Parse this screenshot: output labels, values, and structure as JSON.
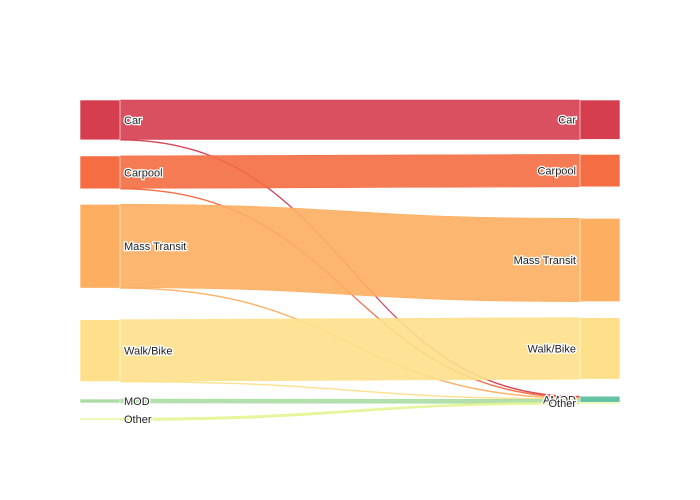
{
  "chart_data": {
    "type": "sankey",
    "title": "",
    "nodes": {
      "left": [
        {
          "id": "car_l",
          "label": "Car",
          "color": "#d53e4f"
        },
        {
          "id": "carpool_l",
          "label": "Carpool",
          "color": "#f46d43"
        },
        {
          "id": "transit_l",
          "label": "Mass Transit",
          "color": "#fdae61"
        },
        {
          "id": "walk_l",
          "label": "Walk/Bike",
          "color": "#fee08b"
        },
        {
          "id": "mod_l",
          "label": "MOD",
          "color": "#abdda4"
        },
        {
          "id": "other_l",
          "label": "Other",
          "color": "#e6f598"
        }
      ],
      "right": [
        {
          "id": "car_r",
          "label": "Car",
          "color": "#d53e4f"
        },
        {
          "id": "carpool_r",
          "label": "Carpool",
          "color": "#f46d43"
        },
        {
          "id": "transit_r",
          "label": "Mass Transit",
          "color": "#fdae61"
        },
        {
          "id": "walk_r",
          "label": "Walk/Bike",
          "color": "#fee08b"
        },
        {
          "id": "amod_r",
          "label": "AMOD",
          "color": "#66c2a5"
        },
        {
          "id": "other_r",
          "label": "Other",
          "color": "#e6f598"
        }
      ]
    },
    "links": [
      {
        "source": "car_l",
        "target": "car_r",
        "value": 39.5
      },
      {
        "source": "car_l",
        "target": "amod_r",
        "value": 0.5
      },
      {
        "source": "carpool_l",
        "target": "carpool_r",
        "value": 32.5
      },
      {
        "source": "carpool_l",
        "target": "amod_r",
        "value": 0.5
      },
      {
        "source": "transit_l",
        "target": "transit_r",
        "value": 83.5
      },
      {
        "source": "transit_l",
        "target": "amod_r",
        "value": 0.5
      },
      {
        "source": "walk_l",
        "target": "walk_r",
        "value": 61.7
      },
      {
        "source": "walk_l",
        "target": "amod_r",
        "value": 0.3
      },
      {
        "source": "mod_l",
        "target": "amod_r",
        "value": 4
      },
      {
        "source": "other_l",
        "target": "other_r",
        "value": 1.7
      },
      {
        "source": "other_l",
        "target": "amod_r",
        "value": 0.3
      }
    ]
  }
}
